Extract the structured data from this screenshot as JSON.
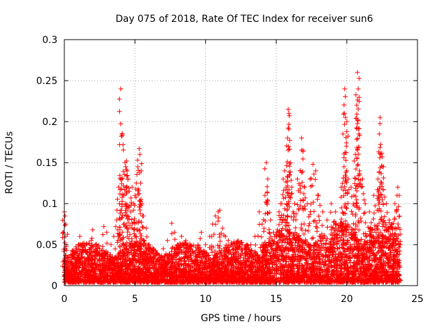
{
  "chart_data": {
    "type": "scatter",
    "title": "Day 075 of 2018, Rate Of TEC Index for receiver sun6",
    "xlabel": "GPS time / hours",
    "ylabel": "ROTI / TECUs",
    "xlim": [
      0,
      25
    ],
    "ylim": [
      0,
      0.3
    ],
    "xticks": [
      0,
      5,
      10,
      15,
      20,
      25
    ],
    "yticks": [
      0,
      0.05,
      0.1,
      0.15,
      0.2,
      0.25,
      0.3
    ],
    "xtick_labels": [
      "0",
      "5",
      "10",
      "15",
      "20",
      "25"
    ],
    "ytick_labels": [
      "0",
      "0.05",
      "0.1",
      "0.15",
      "0.2",
      "0.25",
      "0.3"
    ],
    "grid": true,
    "marker": "+",
    "color": "#ff0000",
    "series": [
      {
        "name": "sun6",
        "points": [
          [
            0.0,
            0.09
          ],
          [
            0.05,
            0.085
          ],
          [
            0.1,
            0.075
          ],
          [
            0.1,
            0.06
          ],
          [
            0.15,
            0.048
          ],
          [
            0.2,
            0.03
          ],
          [
            0.3,
            0.025
          ],
          [
            0.5,
            0.02
          ],
          [
            0.8,
            0.015
          ],
          [
            1.0,
            0.05
          ],
          [
            1.1,
            0.06
          ],
          [
            1.3,
            0.025
          ],
          [
            1.6,
            0.04
          ],
          [
            1.9,
            0.055
          ],
          [
            2.0,
            0.068
          ],
          [
            2.2,
            0.035
          ],
          [
            2.5,
            0.045
          ],
          [
            2.8,
            0.072
          ],
          [
            3.0,
            0.065
          ],
          [
            3.3,
            0.05
          ],
          [
            3.5,
            0.06
          ],
          [
            3.7,
            0.08
          ],
          [
            3.85,
            0.12
          ],
          [
            3.9,
            0.1
          ],
          [
            4.0,
            0.24
          ],
          [
            4.05,
            0.13
          ],
          [
            4.1,
            0.185
          ],
          [
            4.2,
            0.11
          ],
          [
            4.3,
            0.15
          ],
          [
            4.35,
            0.145
          ],
          [
            4.4,
            0.152
          ],
          [
            4.45,
            0.14
          ],
          [
            4.5,
            0.13
          ],
          [
            4.6,
            0.115
          ],
          [
            4.7,
            0.09
          ],
          [
            4.8,
            0.12
          ],
          [
            4.9,
            0.1
          ],
          [
            5.0,
            0.11
          ],
          [
            5.1,
            0.125
          ],
          [
            5.2,
            0.145
          ],
          [
            5.3,
            0.167
          ],
          [
            5.35,
            0.16
          ],
          [
            5.4,
            0.125
          ],
          [
            5.5,
            0.1
          ],
          [
            5.6,
            0.085
          ],
          [
            5.8,
            0.07
          ],
          [
            6.0,
            0.05
          ],
          [
            6.3,
            0.04
          ],
          [
            6.6,
            0.03
          ],
          [
            7.0,
            0.045
          ],
          [
            7.3,
            0.055
          ],
          [
            7.6,
            0.076
          ],
          [
            7.8,
            0.065
          ],
          [
            8.0,
            0.05
          ],
          [
            8.3,
            0.06
          ],
          [
            8.6,
            0.055
          ],
          [
            8.9,
            0.04
          ],
          [
            9.2,
            0.03
          ],
          [
            9.5,
            0.045
          ],
          [
            9.7,
            0.065
          ],
          [
            10.0,
            0.05
          ],
          [
            10.3,
            0.06
          ],
          [
            10.5,
            0.075
          ],
          [
            10.7,
            0.085
          ],
          [
            10.9,
            0.09
          ],
          [
            11.0,
            0.092
          ],
          [
            11.2,
            0.07
          ],
          [
            11.4,
            0.06
          ],
          [
            11.6,
            0.055
          ],
          [
            11.8,
            0.05
          ],
          [
            12.0,
            0.045
          ],
          [
            12.3,
            0.055
          ],
          [
            12.6,
            0.05
          ],
          [
            12.9,
            0.045
          ],
          [
            13.2,
            0.05
          ],
          [
            13.5,
            0.06
          ],
          [
            13.8,
            0.09
          ],
          [
            14.0,
            0.075
          ],
          [
            14.2,
            0.11
          ],
          [
            14.3,
            0.15
          ],
          [
            14.4,
            0.13
          ],
          [
            14.6,
            0.08
          ],
          [
            14.8,
            0.065
          ],
          [
            15.0,
            0.06
          ],
          [
            15.2,
            0.09
          ],
          [
            15.3,
            0.1
          ],
          [
            15.4,
            0.1
          ],
          [
            15.5,
            0.13
          ],
          [
            15.6,
            0.14
          ],
          [
            15.7,
            0.12
          ],
          [
            15.8,
            0.18
          ],
          [
            15.85,
            0.215
          ],
          [
            15.9,
            0.21
          ],
          [
            16.0,
            0.15
          ],
          [
            16.1,
            0.12
          ],
          [
            16.3,
            0.1
          ],
          [
            16.5,
            0.13
          ],
          [
            16.7,
            0.14
          ],
          [
            16.8,
            0.18
          ],
          [
            16.9,
            0.165
          ],
          [
            17.0,
            0.12
          ],
          [
            17.2,
            0.1
          ],
          [
            17.4,
            0.13
          ],
          [
            17.6,
            0.148
          ],
          [
            17.8,
            0.14
          ],
          [
            18.0,
            0.11
          ],
          [
            18.3,
            0.09
          ],
          [
            18.6,
            0.08
          ],
          [
            18.9,
            0.1
          ],
          [
            19.2,
            0.09
          ],
          [
            19.4,
            0.07
          ],
          [
            19.6,
            0.12
          ],
          [
            19.8,
            0.145
          ],
          [
            19.85,
            0.24
          ],
          [
            19.9,
            0.205
          ],
          [
            20.0,
            0.2
          ],
          [
            20.1,
            0.13
          ],
          [
            20.3,
            0.12
          ],
          [
            20.5,
            0.11
          ],
          [
            20.6,
            0.16
          ],
          [
            20.7,
            0.22
          ],
          [
            20.75,
            0.26
          ],
          [
            20.8,
            0.24
          ],
          [
            20.85,
            0.185
          ],
          [
            20.9,
            0.14
          ],
          [
            21.1,
            0.13
          ],
          [
            21.3,
            0.1
          ],
          [
            21.6,
            0.09
          ],
          [
            21.9,
            0.11
          ],
          [
            22.2,
            0.13
          ],
          [
            22.3,
            0.185
          ],
          [
            22.35,
            0.205
          ],
          [
            22.4,
            0.16
          ],
          [
            22.5,
            0.157
          ],
          [
            22.6,
            0.145
          ],
          [
            22.8,
            0.1
          ],
          [
            23.0,
            0.08
          ],
          [
            23.2,
            0.07
          ],
          [
            23.4,
            0.1
          ],
          [
            23.5,
            0.09
          ],
          [
            23.6,
            0.12
          ],
          [
            23.7,
            0.11
          ]
        ]
      }
    ]
  }
}
